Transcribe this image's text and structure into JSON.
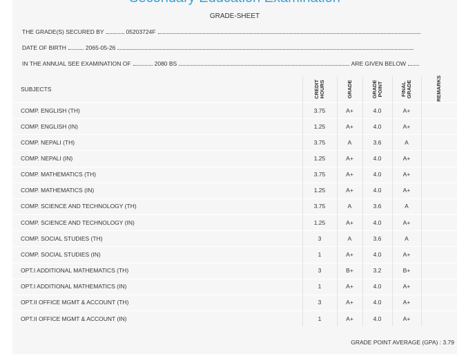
{
  "header": {
    "exam_title": "Secondary Education Examination",
    "title": "GRADE-SHEET"
  },
  "info": {
    "secured_by_label": "THE GRADE(S) SECURED BY",
    "symbol_no": "05203724F",
    "dob_label": "DATE OF BIRTH",
    "dob": "2065-05-26",
    "exam_label": "IN THE ANNUAL SEE EXAMINATION OF",
    "exam_year": "2080 BS",
    "exam_suffix": "ARE GIVEN BELOW"
  },
  "table": {
    "columns": [
      "SUBJECTS",
      "CREDIT HOURS",
      "GRADE",
      "GRADE POINT",
      "FINAL GRADE",
      "REMARKS"
    ],
    "rows": [
      [
        "COMP. ENGLISH (TH)",
        "3.75",
        "A+",
        "4.0",
        "A+"
      ],
      [
        "COMP. ENGLISH (IN)",
        "1.25",
        "A+",
        "4.0",
        "A+"
      ],
      [
        "COMP. NEPALI (TH)",
        "3.75",
        "A",
        "3.6",
        "A"
      ],
      [
        "COMP. NEPALI (IN)",
        "1.25",
        "A+",
        "4.0",
        "A+"
      ],
      [
        "COMP. MATHEMATICS (TH)",
        "3.75",
        "A+",
        "4.0",
        "A+"
      ],
      [
        "COMP. MATHEMATICS (IN)",
        "1.25",
        "A+",
        "4.0",
        "A+"
      ],
      [
        "COMP. SCIENCE AND TECHNOLOGY (TH)",
        "3.75",
        "A",
        "3.6",
        "A"
      ],
      [
        "COMP. SCIENCE AND TECHNOLOGY (IN)",
        "1.25",
        "A+",
        "4.0",
        "A+"
      ],
      [
        "COMP. SOCIAL STUDIES (TH)",
        "3",
        "A",
        "3.6",
        "A"
      ],
      [
        "COMP. SOCIAL STUDIES (IN)",
        "1",
        "A+",
        "4.0",
        "A+"
      ],
      [
        "OPT.I ADDITIONAL MATHEMATICS (TH)",
        "3",
        "B+",
        "3.2",
        "B+"
      ],
      [
        "OPT.I ADDITIONAL MATHEMATICS (IN)",
        "1",
        "A+",
        "4.0",
        "A+"
      ],
      [
        "OPT.II OFFICE MGMT & ACCOUNT (TH)",
        "3",
        "A+",
        "4.0",
        "A+"
      ],
      [
        "OPT.II OFFICE MGMT & ACCOUNT (IN)",
        "1",
        "A+",
        "4.0",
        "A+"
      ]
    ]
  },
  "gpa": {
    "label": "GRADE POINT AVERAGE (GPA) :",
    "value": "3.79"
  }
}
